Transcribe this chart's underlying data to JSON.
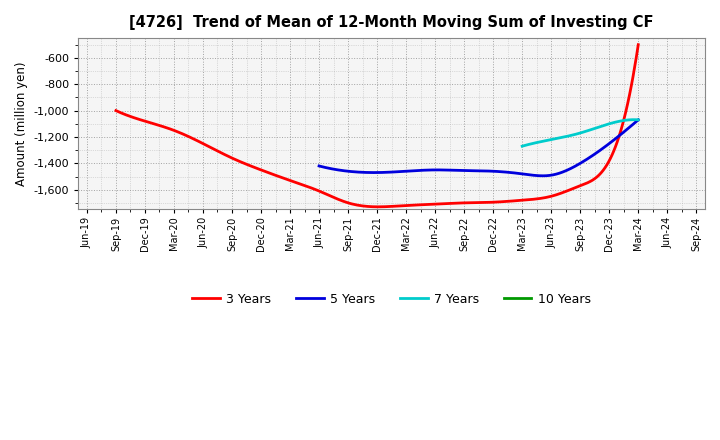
{
  "title": "[4726]  Trend of Mean of 12-Month Moving Sum of Investing CF",
  "ylabel": "Amount (million yen)",
  "background_color": "#ffffff",
  "plot_bg_color": "#f5f5f5",
  "grid_color": "#999999",
  "ylim": [
    -1750,
    -450
  ],
  "yticks": [
    -1600,
    -1400,
    -1200,
    -1000,
    -800,
    -600
  ],
  "legend_labels": [
    "3 Years",
    "5 Years",
    "7 Years",
    "10 Years"
  ],
  "legend_colors": [
    "#ff0000",
    "#0000dd",
    "#00cccc",
    "#009900"
  ],
  "x_labels": [
    "Jun-19",
    "Sep-19",
    "Dec-19",
    "Mar-20",
    "Jun-20",
    "Sep-20",
    "Dec-20",
    "Mar-21",
    "Jun-21",
    "Sep-21",
    "Dec-21",
    "Mar-22",
    "Jun-22",
    "Sep-22",
    "Dec-22",
    "Mar-23",
    "Jun-23",
    "Sep-23",
    "Dec-23",
    "Mar-24",
    "Jun-24",
    "Sep-24"
  ],
  "series_3y": {
    "color": "#ff0000",
    "x_indices": [
      1,
      2,
      3,
      4,
      5,
      6,
      7,
      8,
      9,
      10,
      11,
      12,
      13,
      14,
      15,
      16,
      17,
      18,
      19
    ],
    "values": [
      -1000,
      -1080,
      -1150,
      -1250,
      -1360,
      -1450,
      -1530,
      -1610,
      -1700,
      -1730,
      -1720,
      -1710,
      -1700,
      -1695,
      -1680,
      -1650,
      -1570,
      -1380,
      -500
    ]
  },
  "series_5y": {
    "color": "#0000dd",
    "x_indices": [
      8,
      9,
      10,
      11,
      12,
      13,
      14,
      15,
      16,
      17,
      18,
      19
    ],
    "values": [
      -1420,
      -1460,
      -1470,
      -1460,
      -1450,
      -1455,
      -1460,
      -1480,
      -1490,
      -1400,
      -1250,
      -1070
    ]
  },
  "series_7y": {
    "color": "#00cccc",
    "x_indices": [
      15,
      16,
      17,
      18,
      19
    ],
    "values": [
      -1270,
      -1220,
      -1170,
      -1100,
      -1070
    ]
  },
  "series_10y": {
    "color": "#009900",
    "x_indices": [
      19
    ],
    "values": [
      -1070
    ]
  }
}
